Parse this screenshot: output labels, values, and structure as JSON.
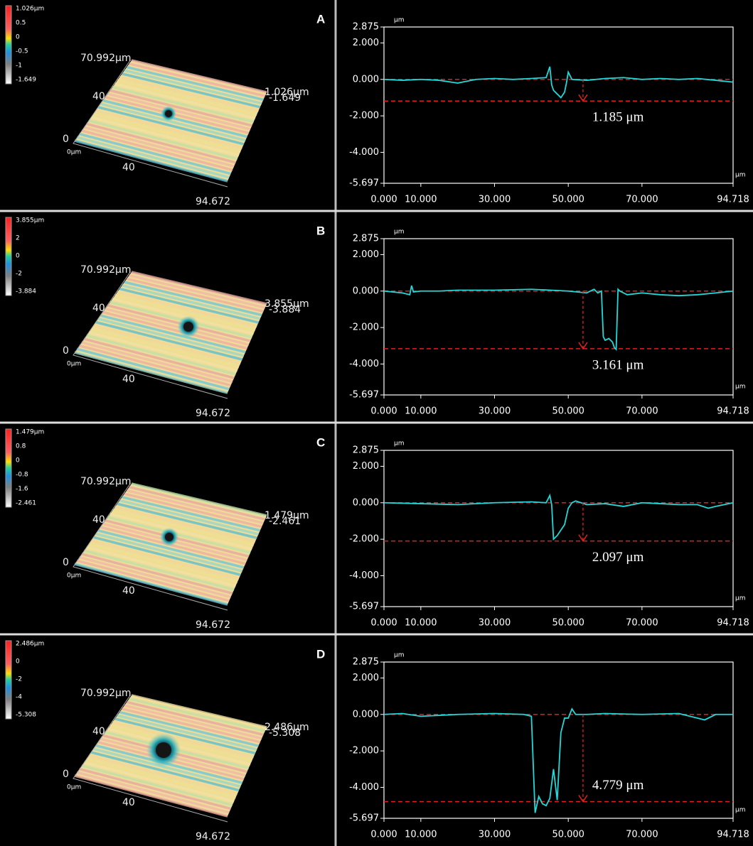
{
  "chart_data": [
    {
      "type": "line",
      "y_unit": "μm",
      "x_unit": "μm",
      "color": "#22d8d8",
      "ref_color": "#e02020",
      "xlim": [
        0,
        94.718
      ],
      "ylim": [
        -5.697,
        2.875
      ],
      "xticks": [
        {
          "value": 0,
          "label": "0.000"
        },
        {
          "value": 10,
          "label": "10.000"
        },
        {
          "value": 30,
          "label": "30.000"
        },
        {
          "value": 50,
          "label": "50.000"
        },
        {
          "value": 70,
          "label": "70.000"
        },
        94.718
      ],
      "yticks": [
        2.875,
        {
          "value": 2,
          "label": "2.000"
        },
        {
          "value": 0,
          "label": "0.000"
        },
        {
          "value": -2,
          "label": "-2.000"
        },
        {
          "value": -4,
          "label": "-4.000"
        },
        -5.697
      ],
      "depth": 1.185,
      "depth_label": "1.185 μm",
      "x": [
        0,
        5,
        10,
        15,
        20,
        25,
        30,
        35,
        40,
        44,
        45,
        45.5,
        46,
        47,
        48,
        49,
        49.5,
        50,
        51,
        55,
        60,
        65,
        70,
        75,
        80,
        85,
        90,
        94.718
      ],
      "values": [
        0,
        -0.05,
        0,
        -0.05,
        -0.2,
        0,
        0.05,
        0,
        0.05,
        0.1,
        0.7,
        -0.3,
        -0.6,
        -0.8,
        -1.0,
        -0.7,
        -0.2,
        0.4,
        0,
        -0.05,
        0.05,
        0.1,
        0,
        0.05,
        0,
        0.05,
        -0.05,
        -0.15
      ]
    },
    {
      "type": "line",
      "y_unit": "μm",
      "x_unit": "μm",
      "color": "#22d8d8",
      "ref_color": "#e02020",
      "xlim": [
        0,
        94.718
      ],
      "ylim": [
        -5.697,
        2.875
      ],
      "xticks": [
        {
          "value": 0,
          "label": "0.000"
        },
        {
          "value": 10,
          "label": "10.000"
        },
        {
          "value": 30,
          "label": "30.000"
        },
        {
          "value": 50,
          "label": "50.000"
        },
        {
          "value": 70,
          "label": "70.000"
        },
        94.718
      ],
      "yticks": [
        2.875,
        {
          "value": 2,
          "label": "2.000"
        },
        {
          "value": 0,
          "label": "0.000"
        },
        {
          "value": -2,
          "label": "-2.000"
        },
        {
          "value": -4,
          "label": "-4.000"
        },
        -5.697
      ],
      "depth": 3.161,
      "depth_label": "3.161 μm",
      "x": [
        0,
        5,
        7,
        7.5,
        8,
        10,
        15,
        20,
        30,
        40,
        50,
        55,
        57,
        58,
        59,
        59.5,
        60,
        61,
        62,
        62.5,
        63,
        63.5,
        64,
        66,
        70,
        75,
        80,
        85,
        90,
        94.718
      ],
      "values": [
        0,
        -0.1,
        -0.2,
        0.3,
        -0.05,
        0,
        0,
        0.05,
        0.05,
        0.1,
        0,
        -0.1,
        0.1,
        -0.1,
        0,
        -2.5,
        -2.7,
        -2.6,
        -2.8,
        -3.1,
        -3.2,
        0.1,
        0,
        -0.2,
        -0.1,
        -0.2,
        -0.25,
        -0.2,
        -0.1,
        0
      ]
    },
    {
      "type": "line",
      "y_unit": "μm",
      "x_unit": "μm",
      "color": "#22d8d8",
      "ref_color": "#e02020",
      "xlim": [
        0,
        94.718
      ],
      "ylim": [
        -5.697,
        2.875
      ],
      "xticks": [
        {
          "value": 0,
          "label": "0.000"
        },
        {
          "value": 10,
          "label": "10.000"
        },
        {
          "value": 30,
          "label": "30.000"
        },
        {
          "value": 50,
          "label": "50.000"
        },
        {
          "value": 70,
          "label": "70.000"
        },
        94.718
      ],
      "yticks": [
        2.875,
        {
          "value": 2,
          "label": "2.000"
        },
        {
          "value": 0,
          "label": "0.000"
        },
        {
          "value": -2,
          "label": "-2.000"
        },
        {
          "value": -4,
          "label": "-4.000"
        },
        -5.697
      ],
      "depth": 2.097,
      "depth_label": "2.097 μm",
      "x": [
        0,
        10,
        20,
        30,
        40,
        44,
        45,
        45.5,
        46,
        47,
        48,
        49,
        50,
        51,
        52,
        55,
        60,
        65,
        70,
        75,
        80,
        85,
        88,
        90,
        94.718
      ],
      "values": [
        0,
        -0.05,
        -0.1,
        0,
        0.05,
        0,
        0.4,
        -0.1,
        -2.0,
        -1.8,
        -1.5,
        -1.2,
        -0.3,
        0,
        0.1,
        -0.1,
        -0.05,
        -0.2,
        0,
        -0.05,
        -0.1,
        -0.1,
        -0.3,
        -0.2,
        0
      ]
    },
    {
      "type": "line",
      "y_unit": "μm",
      "x_unit": "μm",
      "color": "#22d8d8",
      "ref_color": "#e02020",
      "xlim": [
        0,
        94.718
      ],
      "ylim": [
        -5.697,
        2.875
      ],
      "xticks": [
        {
          "value": 0,
          "label": "0.000"
        },
        {
          "value": 10,
          "label": "10.000"
        },
        {
          "value": 30,
          "label": "30.000"
        },
        {
          "value": 50,
          "label": "50.000"
        },
        {
          "value": 70,
          "label": "70.000"
        },
        94.718
      ],
      "yticks": [
        2.875,
        {
          "value": 2,
          "label": "2.000"
        },
        {
          "value": 0,
          "label": "0.000"
        },
        {
          "value": -2,
          "label": "-2.000"
        },
        {
          "value": -4,
          "label": "-4.000"
        },
        -5.697
      ],
      "depth": 4.779,
      "depth_label": "4.779 μm",
      "x": [
        0,
        5,
        10,
        20,
        30,
        38,
        40,
        41,
        42,
        43,
        44,
        45,
        46,
        47,
        48,
        49,
        50,
        51,
        52,
        55,
        60,
        70,
        80,
        85,
        87,
        90,
        94.718
      ],
      "values": [
        0,
        0.05,
        -0.1,
        0,
        0.05,
        0,
        -0.1,
        -5.4,
        -4.5,
        -4.9,
        -5.0,
        -4.6,
        -3.0,
        -4.7,
        -1.0,
        -0.2,
        -0.2,
        0.3,
        0,
        0,
        0.05,
        0,
        0.05,
        -0.2,
        -0.3,
        0,
        0
      ]
    }
  ],
  "surfaces": [
    {
      "label": "A",
      "scale_max": "1.026μm",
      "scale_ticks": [
        "0.5",
        "0",
        "-0.5",
        "-1"
      ],
      "scale_min": "-1.649",
      "y_max": "70.992μm",
      "y_mid": "40",
      "z_zero": "0",
      "origin": "0μm",
      "x_mid": "40",
      "x_max": "94.672",
      "corner_top": "1.026μm",
      "corner_bottom": "-1.649"
    },
    {
      "label": "B",
      "scale_max": "3.855μm",
      "scale_ticks": [
        "2",
        "0",
        "-2"
      ],
      "scale_min": "-3.884",
      "y_max": "70.992μm",
      "y_mid": "40",
      "z_zero": "0",
      "origin": "0μm",
      "x_mid": "40",
      "x_max": "94.672",
      "corner_top": "3.855μm",
      "corner_bottom": "-3.884"
    },
    {
      "label": "C",
      "scale_max": "1.479μm",
      "scale_ticks": [
        "0.8",
        "0",
        "-0.8",
        "-1.6"
      ],
      "scale_min": "-2.461",
      "y_max": "70.992μm",
      "y_mid": "40",
      "z_zero": "0",
      "origin": "0μm",
      "x_mid": "40",
      "x_max": "94.672",
      "corner_top": "1.479μm",
      "corner_bottom": "-2.461"
    },
    {
      "label": "D",
      "scale_max": "2.486μm",
      "scale_ticks": [
        "0",
        "-2",
        "-4"
      ],
      "scale_min": "-5.308",
      "y_max": "70.992μm",
      "y_mid": "40",
      "z_zero": "0",
      "origin": "0μm",
      "x_mid": "40",
      "x_max": "94.672",
      "corner_top": "2.486μm",
      "corner_bottom": "-5.308"
    }
  ]
}
